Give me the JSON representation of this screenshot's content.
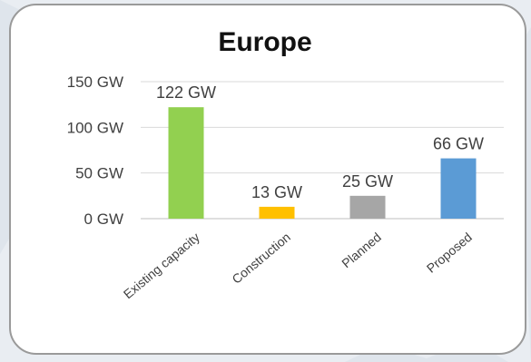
{
  "chart_data": {
    "type": "bar",
    "title": "Europe",
    "categories": [
      "Existing capacity",
      "Construction",
      "Planned",
      "Proposed"
    ],
    "values": [
      122,
      13,
      25,
      66
    ],
    "data_labels": [
      "122 GW",
      "13 GW",
      "25 GW",
      "66 GW"
    ],
    "yticks": [
      "0 GW",
      "50 GW",
      "100 GW",
      "150 GW"
    ],
    "ytick_values": [
      0,
      50,
      100,
      150
    ],
    "ylim": [
      0,
      150
    ],
    "unit": "GW",
    "grid": true,
    "legend": "none",
    "colors": [
      "#92d050",
      "#ffc000",
      "#a6a6a6",
      "#5b9bd5"
    ],
    "gridline_color": "#d9d9d9",
    "text_color": "#404040"
  }
}
